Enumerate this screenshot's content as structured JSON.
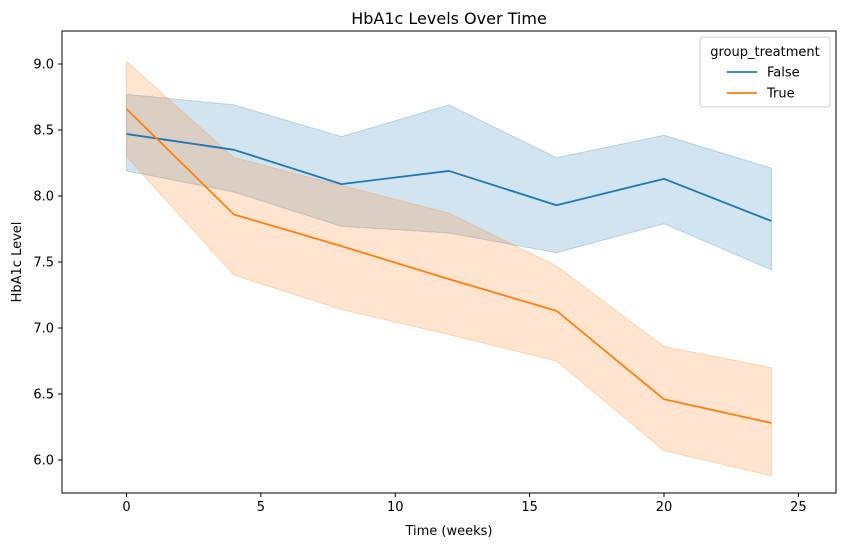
{
  "chart_data": {
    "type": "line",
    "title": "HbA1c Levels Over Time",
    "xlabel": "Time (weeks)",
    "ylabel": "HbA1c Level",
    "x": [
      0,
      4,
      8,
      12,
      16,
      20,
      24
    ],
    "xlim": [
      -2.4,
      26.4
    ],
    "ylim": [
      5.75,
      9.25
    ],
    "xticks": [
      0,
      5,
      10,
      15,
      20,
      25
    ],
    "yticks": [
      6.0,
      6.5,
      7.0,
      7.5,
      8.0,
      8.5,
      9.0
    ],
    "grid": false,
    "legend": {
      "title": "group_treatment",
      "position": "top-right"
    },
    "series": [
      {
        "name": "False",
        "color": "#1f77b4",
        "values": [
          8.47,
          8.35,
          8.09,
          8.19,
          7.93,
          8.13,
          7.81
        ],
        "ci_low": [
          8.19,
          8.03,
          7.77,
          7.72,
          7.57,
          7.79,
          7.44
        ],
        "ci_high": [
          8.77,
          8.69,
          8.45,
          8.69,
          8.29,
          8.46,
          8.21
        ]
      },
      {
        "name": "True",
        "color": "#ff7f0e",
        "values": [
          8.66,
          7.86,
          7.62,
          7.37,
          7.13,
          6.46,
          6.28
        ],
        "ci_low": [
          8.3,
          7.4,
          7.14,
          6.95,
          6.75,
          6.07,
          5.88
        ],
        "ci_high": [
          9.02,
          8.29,
          8.08,
          7.87,
          7.47,
          6.86,
          6.7
        ]
      }
    ]
  }
}
